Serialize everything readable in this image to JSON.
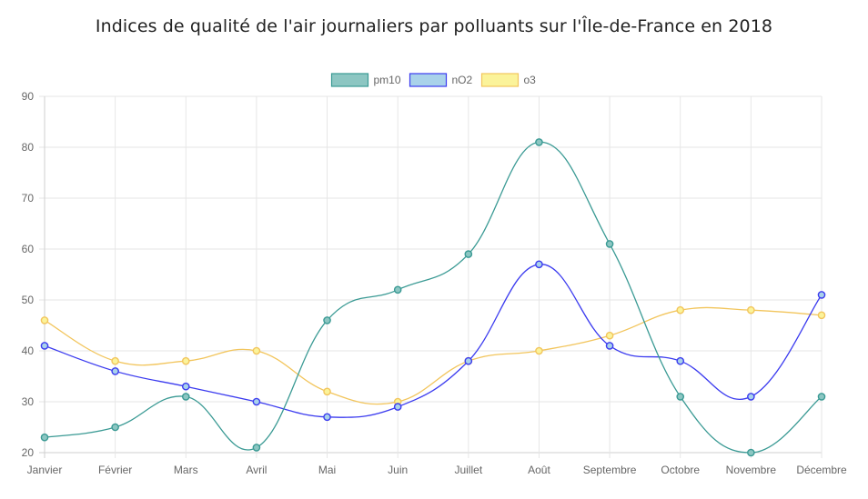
{
  "chart_data": {
    "type": "line",
    "title": "Indices de qualité de l'air journaliers par polluants sur l'Île-de-France en 2018",
    "categories": [
      "Janvier",
      "Février",
      "Mars",
      "Avril",
      "Mai",
      "Juin",
      "Juillet",
      "Août",
      "Septembre",
      "Octobre",
      "Novembre",
      "Décembre"
    ],
    "series": [
      {
        "name": "pm10",
        "values": [
          23,
          25,
          31,
          21,
          46,
          52,
          59,
          81,
          61,
          31,
          20,
          31
        ],
        "line_color": "#3a9a94",
        "fill_color": "#8cc6c2"
      },
      {
        "name": "nO2",
        "values": [
          41,
          36,
          33,
          30,
          27,
          29,
          38,
          57,
          41,
          38,
          31,
          51
        ],
        "line_color": "#3b3bef",
        "fill_color": "#a9d2ea"
      },
      {
        "name": "o3",
        "values": [
          46,
          38,
          38,
          40,
          32,
          30,
          38,
          40,
          43,
          48,
          48,
          47
        ],
        "line_color": "#f2c55c",
        "fill_color": "#fbf39a"
      }
    ],
    "ylim": [
      20,
      90
    ],
    "yticks": [
      20,
      30,
      40,
      50,
      60,
      70,
      80,
      90
    ],
    "grid": true,
    "legend_position": "top-center"
  }
}
